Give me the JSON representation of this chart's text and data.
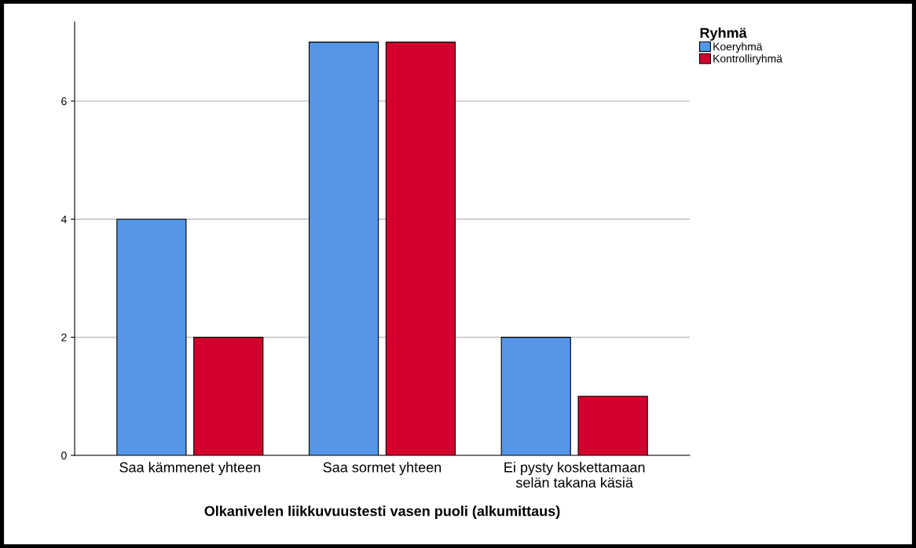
{
  "chart_data": {
    "type": "bar",
    "xlabel": "Olkanivelen liikkuvuustesti vasen puoli (alkumittaus)",
    "categories": [
      "Saa kämmenet yhteen",
      "Saa sormet yhteen",
      "Ei pysty koskettamaan\nselän takana käsiä"
    ],
    "series": [
      {
        "name": "Koeryhmä",
        "color": "#5596e6",
        "values": [
          4,
          7,
          2
        ]
      },
      {
        "name": "Kontrolliryhmä",
        "color": "#d3002d",
        "values": [
          2,
          7,
          1
        ]
      }
    ],
    "legend_title": "Ryhmä",
    "legend": "top right",
    "ylim": [
      0,
      7.34
    ],
    "yticks": [
      0,
      2,
      4,
      6
    ],
    "grid": "y"
  }
}
